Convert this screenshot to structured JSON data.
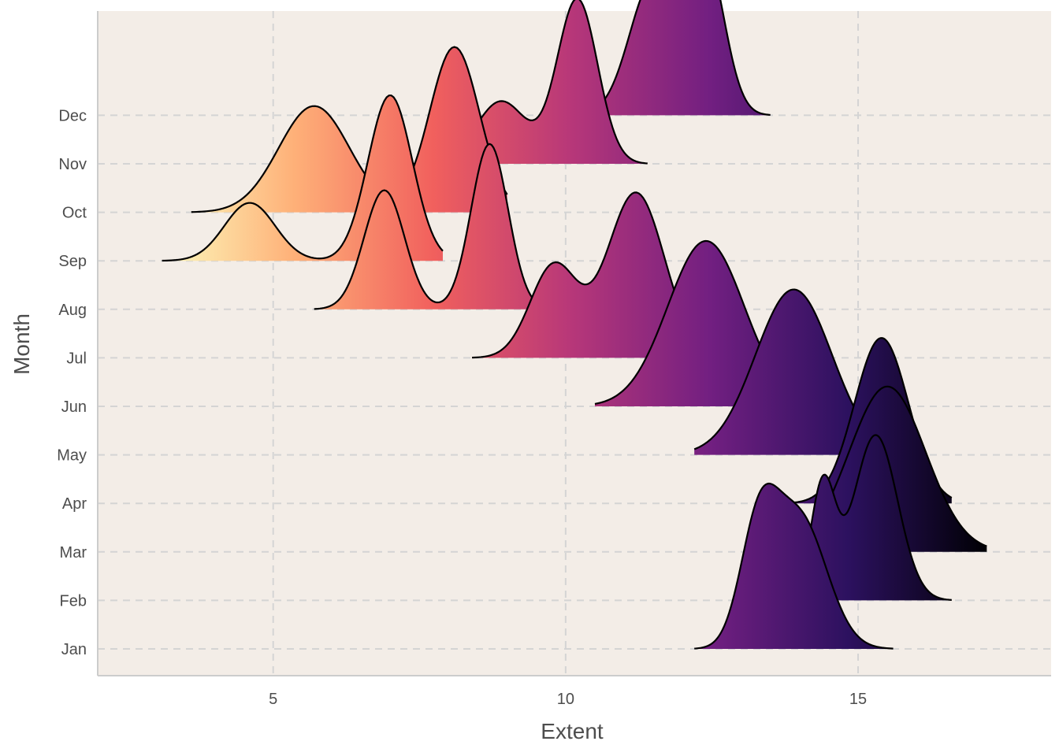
{
  "chart_data": {
    "type": "ridgeline",
    "xlabel": "Extent",
    "ylabel": "Month",
    "xlim": [
      2,
      18.3
    ],
    "xticks": [
      5,
      10,
      15
    ],
    "grid": true,
    "colors": {
      "panel_background": "#f3ede7",
      "axis_line": "#cccccc",
      "outline": "#000000",
      "gradient": [
        "#fcfdbf",
        "#feb078",
        "#f1605d",
        "#b73779",
        "#721f81",
        "#2c115f",
        "#000004"
      ]
    },
    "fill_by": "x-value (magma scale, high extent = dark)",
    "series": [
      {
        "name": "Jan",
        "x_range": [
          12.2,
          15.6
        ],
        "peak_x": 14.0,
        "peaks": [
          [
            13.3,
            0.86
          ],
          [
            14.0,
            1.0
          ]
        ]
      },
      {
        "name": "Feb",
        "x_range": [
          14.0,
          16.6
        ],
        "peak_x": 15.3,
        "peaks": [
          [
            14.4,
            0.7
          ],
          [
            15.3,
            1.0
          ]
        ]
      },
      {
        "name": "Mar",
        "x_range": [
          13.5,
          17.2
        ],
        "peak_x": 15.5,
        "peaks": [
          [
            15.5,
            1.0
          ]
        ]
      },
      {
        "name": "Apr",
        "x_range": [
          13.5,
          16.6
        ],
        "peak_x": 15.4,
        "peaks": [
          [
            15.4,
            1.0
          ]
        ]
      },
      {
        "name": "May",
        "x_range": [
          12.2,
          15.8
        ],
        "peak_x": 13.9,
        "peaks": [
          [
            13.9,
            1.0
          ]
        ]
      },
      {
        "name": "Jun",
        "x_range": [
          10.5,
          14.1
        ],
        "peak_x": 12.4,
        "peaks": [
          [
            12.4,
            1.0
          ]
        ]
      },
      {
        "name": "Jul",
        "x_range": [
          8.4,
          12.9
        ],
        "peak_x": 11.2,
        "peaks": [
          [
            9.8,
            0.56
          ],
          [
            11.2,
            1.0
          ]
        ]
      },
      {
        "name": "Aug",
        "x_range": [
          5.7,
          9.7
        ],
        "peak_x": 8.7,
        "peaks": [
          [
            6.9,
            0.72
          ],
          [
            8.7,
            1.0
          ]
        ]
      },
      {
        "name": "Sep",
        "x_range": [
          3.1,
          7.9
        ],
        "peak_x": 7.0,
        "peaks": [
          [
            4.6,
            0.35
          ],
          [
            7.0,
            1.0
          ]
        ]
      },
      {
        "name": "Oct",
        "x_range": [
          3.6,
          9.0
        ],
        "peak_x": 8.1,
        "peaks": [
          [
            5.7,
            0.63
          ],
          [
            8.1,
            0.98
          ]
        ]
      },
      {
        "name": "Nov",
        "x_range": [
          7.4,
          11.4
        ],
        "peak_x": 10.2,
        "peaks": [
          [
            8.9,
            0.38
          ],
          [
            10.2,
            1.0
          ]
        ]
      },
      {
        "name": "Dec",
        "x_range": [
          10.1,
          13.5
        ],
        "peak_x": 12.4,
        "peaks": [
          [
            11.5,
            0.88
          ],
          [
            12.4,
            1.0
          ]
        ]
      }
    ]
  }
}
